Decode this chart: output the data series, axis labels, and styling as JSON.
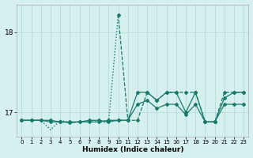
{
  "xlabel": "Humidex (Indice chaleur)",
  "background_color": "#d6f0f0",
  "grid_color": "#b8dede",
  "line_color": "#1a7a6a",
  "xlim": [
    -0.5,
    23.5
  ],
  "ylim": [
    16.7,
    18.35
  ],
  "yticks": [
    17,
    18
  ],
  "xticks": [
    0,
    1,
    2,
    3,
    4,
    5,
    6,
    7,
    8,
    9,
    10,
    11,
    12,
    13,
    14,
    15,
    16,
    17,
    18,
    19,
    20,
    21,
    22,
    23
  ],
  "line1_x": [
    0,
    1,
    2,
    3,
    4,
    5,
    6,
    7,
    8,
    9,
    10
  ],
  "line1_y": [
    16.9,
    16.9,
    16.9,
    16.78,
    16.9,
    16.87,
    16.88,
    16.88,
    16.88,
    16.87,
    18.22
  ],
  "line1_style": "dotted",
  "line2_x": [
    0,
    1,
    2,
    3,
    4,
    5,
    6,
    7,
    8,
    9,
    10,
    11,
    12,
    13,
    14,
    15,
    16,
    17,
    18,
    19,
    20,
    21,
    22,
    23
  ],
  "line2_y": [
    16.9,
    16.9,
    16.9,
    16.88,
    16.88,
    16.88,
    16.88,
    16.9,
    16.9,
    16.88,
    16.9,
    16.9,
    17.1,
    17.15,
    17.05,
    17.1,
    17.1,
    16.97,
    17.1,
    16.88,
    16.88,
    17.1,
    17.1,
    17.1
  ],
  "line2_style": "solid",
  "line3_x": [
    0,
    1,
    2,
    3,
    4,
    5,
    6,
    7,
    8,
    9,
    10,
    11,
    12,
    13,
    14,
    15,
    16,
    17,
    18,
    19,
    20,
    21,
    22,
    23
  ],
  "line3_y": [
    16.9,
    16.9,
    16.9,
    16.9,
    16.88,
    16.87,
    16.88,
    16.88,
    16.88,
    16.9,
    16.9,
    16.9,
    17.25,
    17.25,
    17.15,
    17.25,
    17.25,
    17.0,
    17.25,
    16.88,
    16.88,
    17.18,
    17.25,
    17.25
  ],
  "line3_style": "solid",
  "line4_x": [
    10,
    11,
    12,
    13,
    14,
    15,
    16,
    17,
    18,
    19,
    20,
    21,
    22,
    23
  ],
  "line4_y": [
    18.22,
    16.9,
    16.9,
    17.25,
    17.15,
    17.25,
    17.25,
    17.25,
    17.25,
    16.88,
    16.88,
    17.25,
    17.25,
    17.25
  ],
  "line4_style": "dashed"
}
